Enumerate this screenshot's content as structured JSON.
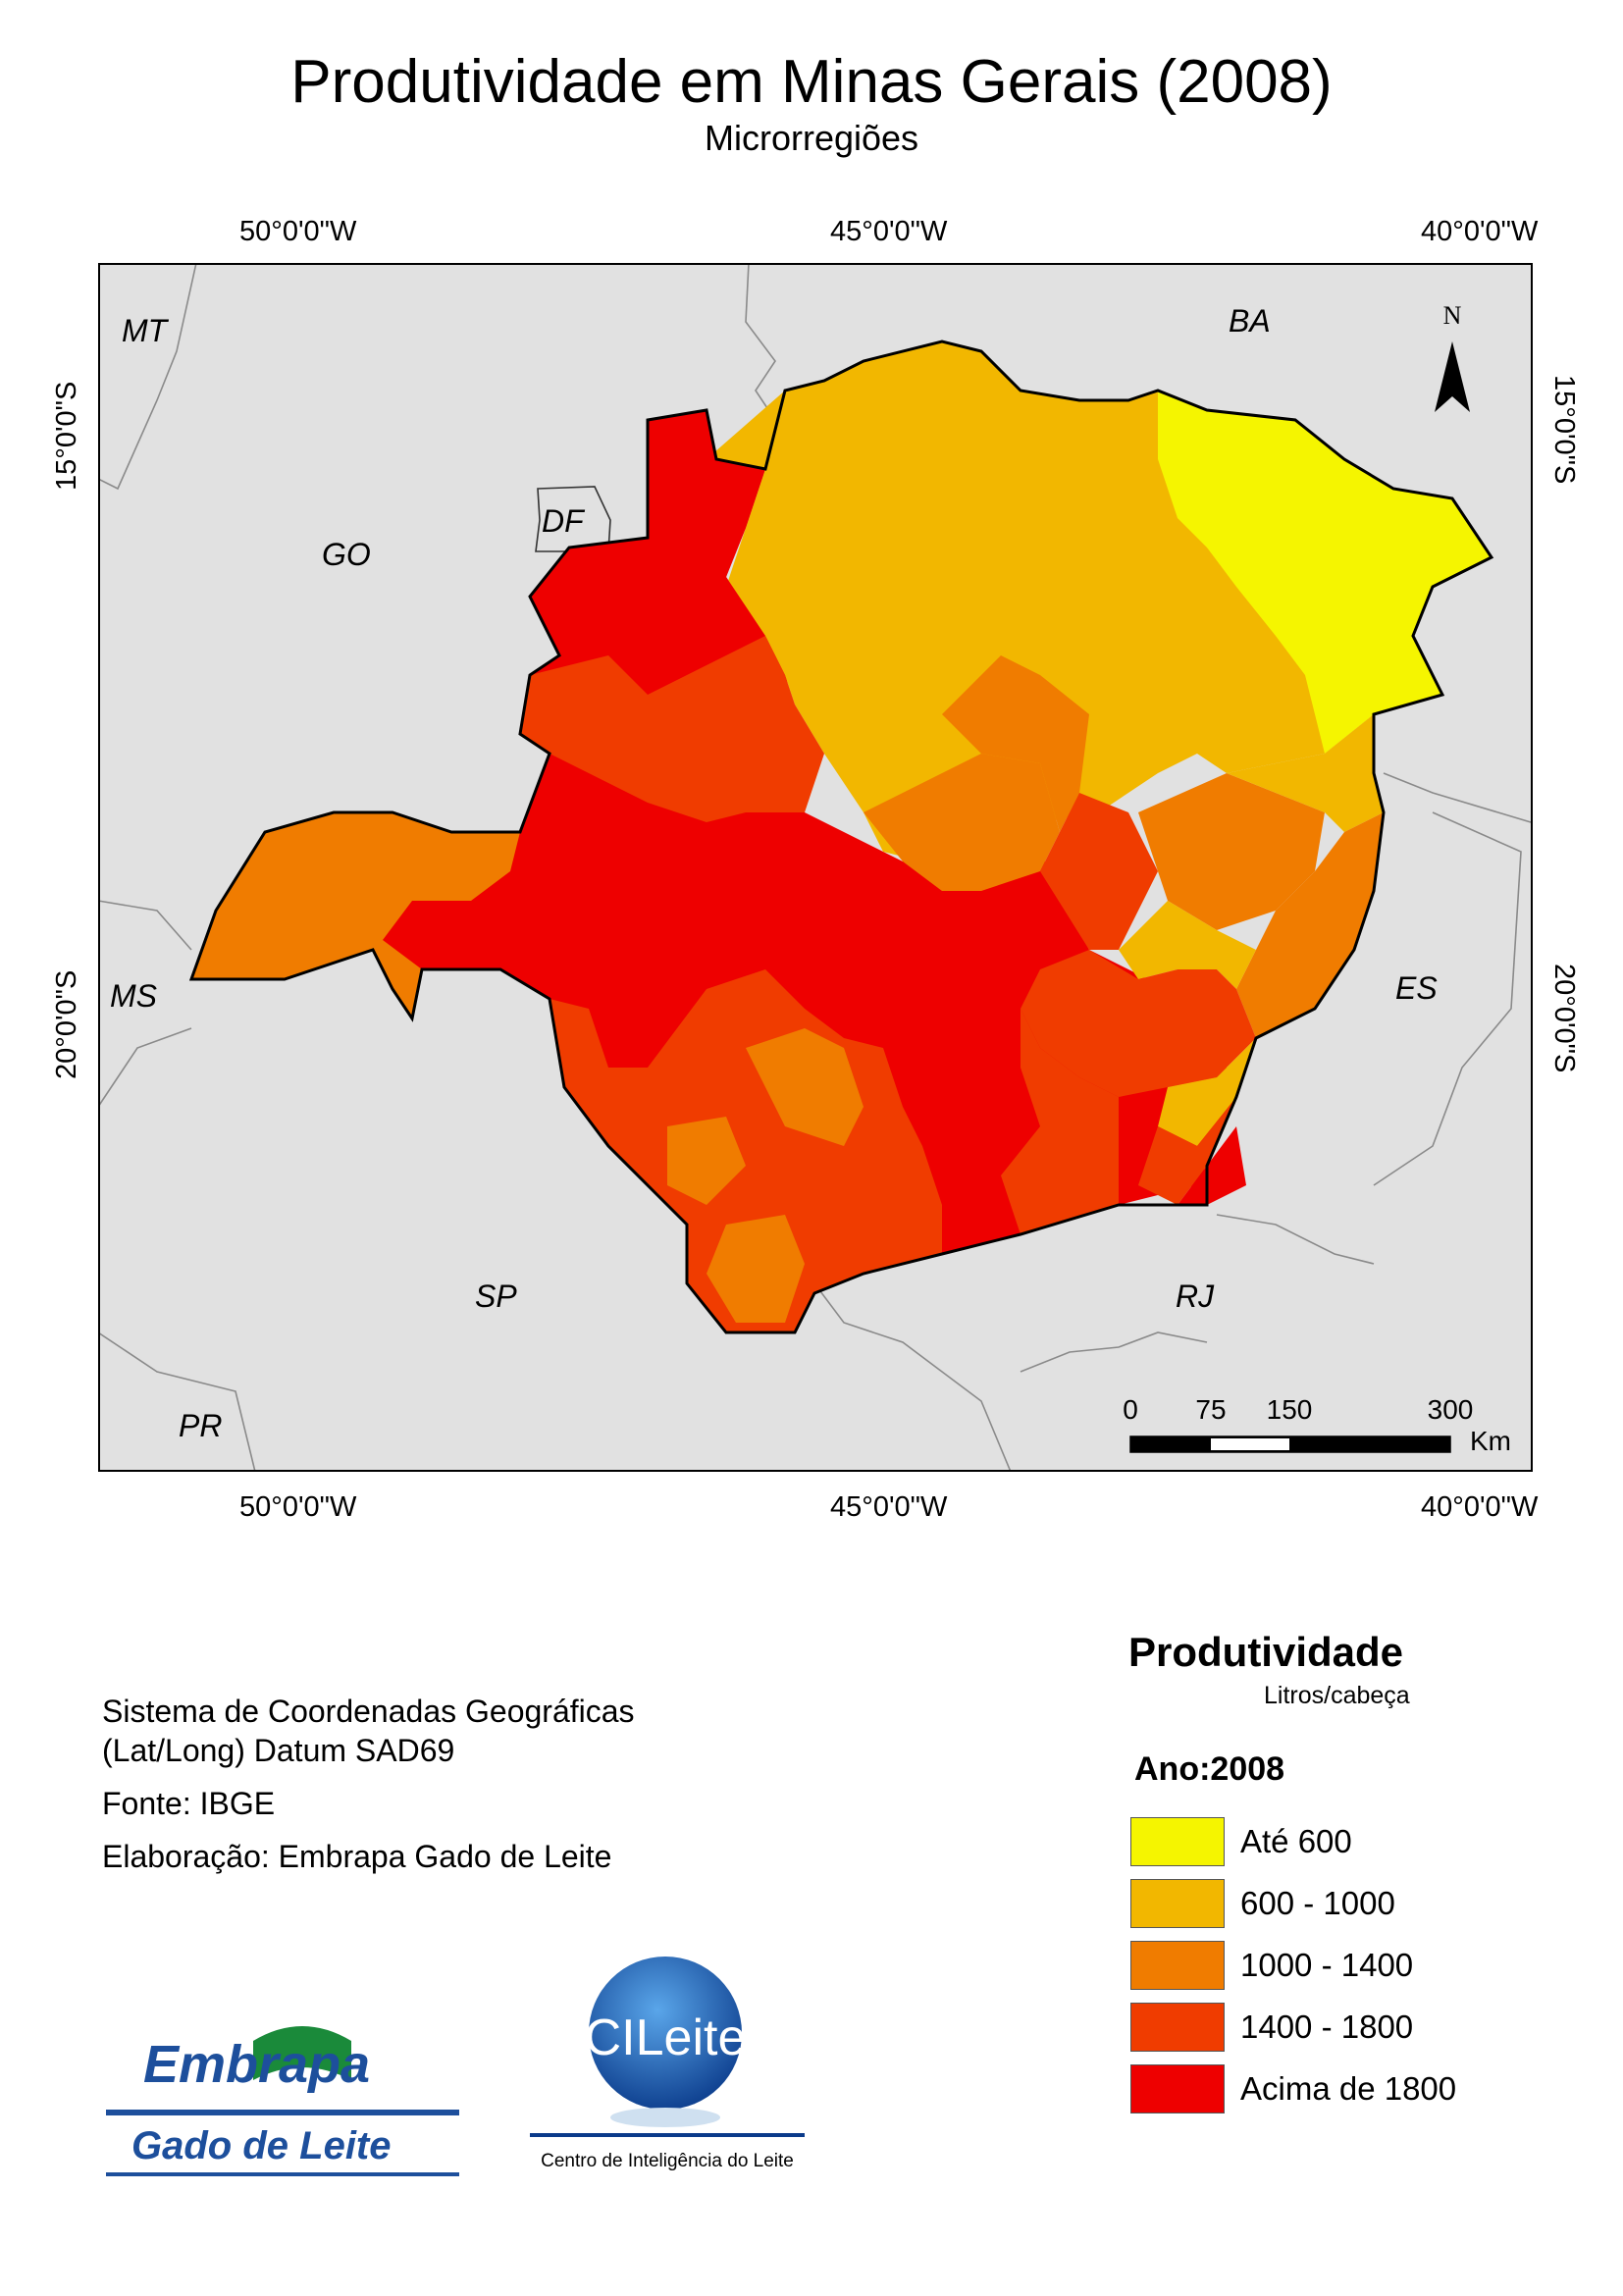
{
  "title": "Produtividade em Minas Gerais (2008)",
  "subtitle": "Microrregiões",
  "graticule": {
    "lon_labels": [
      "50°0'0\"W",
      "45°0'0\"W",
      "40°0'0\"W"
    ],
    "lat_labels": [
      "15°0'0\"S",
      "20°0'0\"S"
    ]
  },
  "states": [
    "MT",
    "BA",
    "DF",
    "GO",
    "MS",
    "ES",
    "SP",
    "RJ",
    "PR"
  ],
  "north_arrow": {
    "label": "N"
  },
  "scale_bar": {
    "ticks": [
      "0",
      "75",
      "150",
      "300"
    ],
    "unit": "Km"
  },
  "credits": {
    "line1": "Sistema de Coordenadas Geográficas",
    "line2": "(Lat/Long) Datum SAD69",
    "source": "Fonte: IBGE",
    "author": "Elaboração: Embrapa Gado de Leite"
  },
  "legend": {
    "title": "Produtividade",
    "unit": "Litros/cabeça",
    "year": "Ano:2008",
    "classes": [
      {
        "label": "Até 600",
        "color": "#f5f500"
      },
      {
        "label": "600 - 1000",
        "color": "#f2b700"
      },
      {
        "label": "1000 - 1400",
        "color": "#f07c00"
      },
      {
        "label": "1400 - 1800",
        "color": "#f03c00"
      },
      {
        "label": "Acima de 1800",
        "color": "#ee0000"
      }
    ]
  },
  "logos": {
    "embrapa_top": "Embrapa",
    "embrapa_bottom": "Gado de Leite",
    "cileite": "CILeite",
    "cileite_caption": "Centro de Inteligência do Leite"
  }
}
